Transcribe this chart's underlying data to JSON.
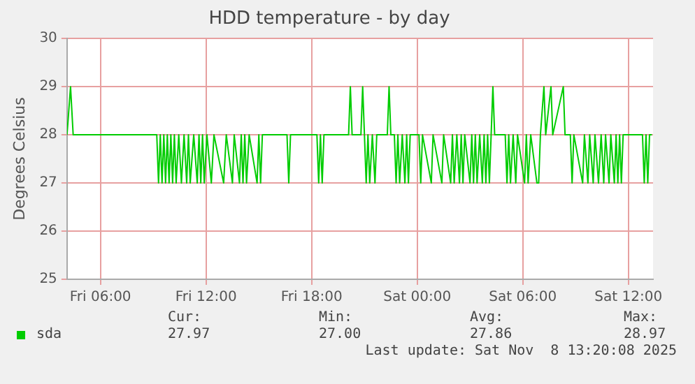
{
  "chart_data": {
    "type": "line",
    "title": "HDD temperature - by day",
    "ylabel": "Degrees Celsius",
    "xlim": [
      "2025-11-07T04:06",
      "2025-11-08T13:24"
    ],
    "xticks": [
      {
        "value": "2025-11-07T06:00",
        "label": "Fri 06:00"
      },
      {
        "value": "2025-11-07T12:00",
        "label": "Fri 12:00"
      },
      {
        "value": "2025-11-07T18:00",
        "label": "Fri 18:00"
      },
      {
        "value": "2025-11-08T00:00",
        "label": "Sat 00:00"
      },
      {
        "value": "2025-11-08T06:00",
        "label": "Sat 06:00"
      },
      {
        "value": "2025-11-08T12:00",
        "label": "Sat 12:00"
      }
    ],
    "ylim": [
      25,
      30
    ],
    "yticks": [
      25,
      26,
      27,
      28,
      29,
      30
    ],
    "grid": true,
    "legend": "bottom left",
    "marker": "none",
    "line_style": "solid",
    "series": [
      {
        "name": "sda",
        "color": "#00cc00",
        "x": [
          "2025-11-07T04:06",
          "2025-11-07T04:18",
          "2025-11-07T04:27",
          "2025-11-07T09:12",
          "2025-11-07T09:18",
          "2025-11-07T09:24",
          "2025-11-07T09:30",
          "2025-11-07T09:36",
          "2025-11-07T09:42",
          "2025-11-07T09:48",
          "2025-11-07T09:54",
          "2025-11-07T10:00",
          "2025-11-07T10:06",
          "2025-11-07T10:12",
          "2025-11-07T10:18",
          "2025-11-07T10:27",
          "2025-11-07T10:36",
          "2025-11-07T10:45",
          "2025-11-07T10:54",
          "2025-11-07T11:00",
          "2025-11-07T11:06",
          "2025-11-07T11:18",
          "2025-11-07T11:30",
          "2025-11-07T11:36",
          "2025-11-07T11:42",
          "2025-11-07T11:48",
          "2025-11-07T11:54",
          "2025-11-07T12:03",
          "2025-11-07T12:18",
          "2025-11-07T12:27",
          "2025-11-07T13:00",
          "2025-11-07T13:09",
          "2025-11-07T13:30",
          "2025-11-07T13:36",
          "2025-11-07T13:54",
          "2025-11-07T14:00",
          "2025-11-07T14:06",
          "2025-11-07T14:12",
          "2025-11-07T14:18",
          "2025-11-07T14:27",
          "2025-11-07T14:54",
          "2025-11-07T15:00",
          "2025-11-07T15:06",
          "2025-11-07T15:12",
          "2025-11-07T16:36",
          "2025-11-07T16:42",
          "2025-11-07T16:48",
          "2025-11-07T18:18",
          "2025-11-07T18:24",
          "2025-11-07T18:30",
          "2025-11-07T18:36",
          "2025-11-07T18:42",
          "2025-11-07T20:06",
          "2025-11-07T20:12",
          "2025-11-07T20:18",
          "2025-11-07T20:48",
          "2025-11-07T20:54",
          "2025-11-07T21:00",
          "2025-11-07T21:06",
          "2025-11-07T21:12",
          "2025-11-07T21:18",
          "2025-11-07T21:27",
          "2025-11-07T21:36",
          "2025-11-07T21:42",
          "2025-11-07T22:18",
          "2025-11-07T22:24",
          "2025-11-07T22:30",
          "2025-11-07T22:42",
          "2025-11-07T22:48",
          "2025-11-07T22:54",
          "2025-11-07T23:00",
          "2025-11-07T23:09",
          "2025-11-07T23:18",
          "2025-11-07T23:24",
          "2025-11-07T23:30",
          "2025-11-07T23:36",
          "2025-11-08T00:06",
          "2025-11-08T00:12",
          "2025-11-08T00:18",
          "2025-11-08T00:48",
          "2025-11-08T00:54",
          "2025-11-08T01:24",
          "2025-11-08T01:30",
          "2025-11-08T01:54",
          "2025-11-08T02:00",
          "2025-11-08T02:06",
          "2025-11-08T02:15",
          "2025-11-08T02:24",
          "2025-11-08T02:30",
          "2025-11-08T02:36",
          "2025-11-08T02:42",
          "2025-11-08T03:00",
          "2025-11-08T03:06",
          "2025-11-08T03:12",
          "2025-11-08T03:18",
          "2025-11-08T03:24",
          "2025-11-08T03:33",
          "2025-11-08T03:42",
          "2025-11-08T03:48",
          "2025-11-08T03:54",
          "2025-11-08T04:00",
          "2025-11-08T04:06",
          "2025-11-08T04:12",
          "2025-11-08T04:18",
          "2025-11-08T04:24",
          "2025-11-08T05:00",
          "2025-11-08T05:06",
          "2025-11-08T05:12",
          "2025-11-08T05:18",
          "2025-11-08T05:27",
          "2025-11-08T05:36",
          "2025-11-08T05:42",
          "2025-11-08T06:06",
          "2025-11-08T06:12",
          "2025-11-08T06:18",
          "2025-11-08T06:27",
          "2025-11-08T06:48",
          "2025-11-08T06:54",
          "2025-11-08T07:00",
          "2025-11-08T07:12",
          "2025-11-08T07:18",
          "2025-11-08T07:36",
          "2025-11-08T07:42",
          "2025-11-08T08:18",
          "2025-11-08T08:24",
          "2025-11-08T08:42",
          "2025-11-08T08:48",
          "2025-11-08T08:54",
          "2025-11-08T09:24",
          "2025-11-08T09:30",
          "2025-11-08T09:42",
          "2025-11-08T09:48",
          "2025-11-08T10:00",
          "2025-11-08T10:06",
          "2025-11-08T10:18",
          "2025-11-08T10:27",
          "2025-11-08T10:36",
          "2025-11-08T10:42",
          "2025-11-08T10:54",
          "2025-11-08T11:00",
          "2025-11-08T11:12",
          "2025-11-08T11:18",
          "2025-11-08T11:24",
          "2025-11-08T11:30",
          "2025-11-08T11:36",
          "2025-11-08T11:42",
          "2025-11-08T12:48",
          "2025-11-08T12:54",
          "2025-11-08T13:00",
          "2025-11-08T13:06",
          "2025-11-08T13:12",
          "2025-11-08T13:20"
        ],
        "values": [
          28,
          29,
          28,
          28,
          27,
          28,
          27,
          28,
          27,
          28,
          27,
          28,
          27,
          28,
          27,
          28,
          27,
          28,
          27,
          28,
          27,
          28,
          27,
          28,
          27,
          28,
          27,
          28,
          27,
          28,
          27,
          28,
          27,
          28,
          27,
          28,
          27,
          28,
          27,
          28,
          27,
          28,
          27,
          28,
          28,
          27,
          28,
          28,
          27,
          28,
          27,
          28,
          28,
          29,
          28,
          28,
          29,
          28,
          27,
          28,
          27,
          28,
          27,
          28,
          28,
          29,
          28,
          28,
          27,
          28,
          27,
          28,
          27,
          28,
          27,
          28,
          28,
          27,
          28,
          27,
          28,
          27,
          28,
          27,
          28,
          27,
          28,
          27,
          28,
          27,
          28,
          27,
          28,
          27,
          28,
          27,
          28,
          27,
          28,
          27,
          28,
          27,
          28,
          29,
          28,
          28,
          27,
          28,
          27,
          28,
          27,
          28,
          27,
          28,
          27,
          28,
          27,
          27,
          28,
          29,
          28,
          29,
          28,
          29,
          28,
          28,
          27,
          28,
          27,
          28,
          27,
          28,
          27,
          28,
          27,
          28,
          27,
          28,
          27,
          28,
          27,
          28,
          27,
          28,
          27,
          28,
          28,
          27,
          28,
          27,
          28,
          28
        ]
      }
    ],
    "annotations": [
      "Cur:",
      "Min:",
      "Avg:",
      "Max:",
      "27.97",
      "27.00",
      "27.86",
      "28.97",
      "Last update: Sat Nov  8 13:20:08 2025"
    ]
  }
}
